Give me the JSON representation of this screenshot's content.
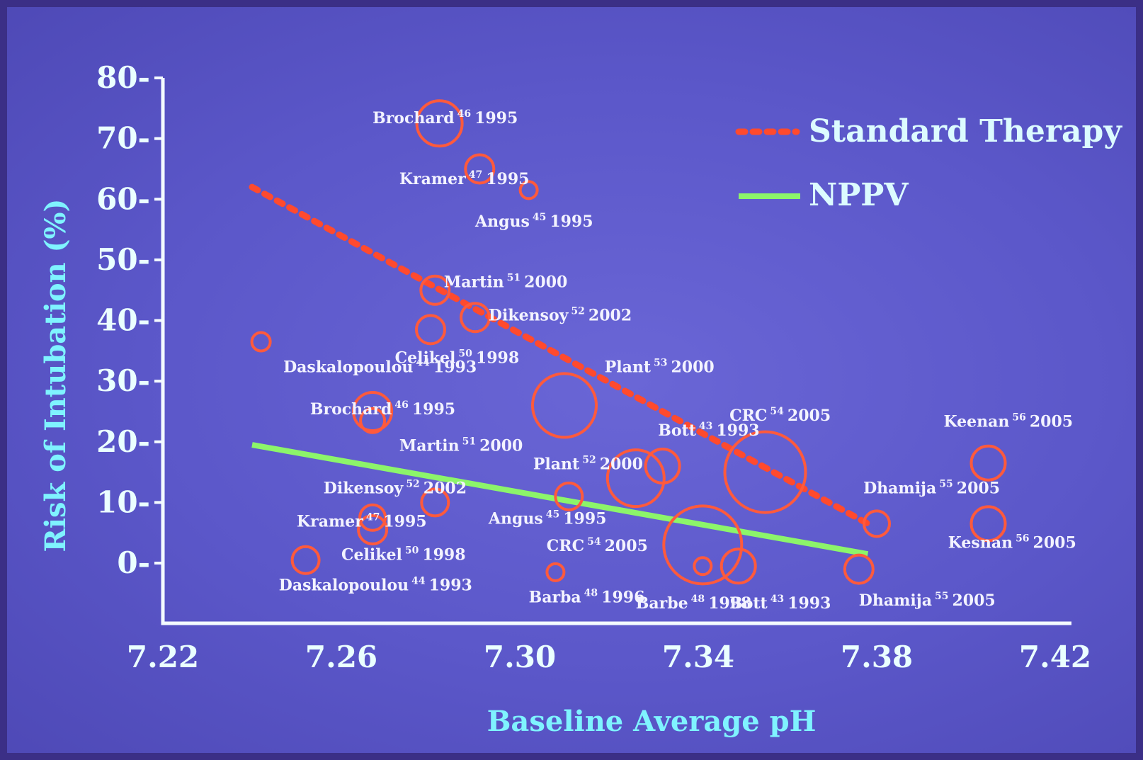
{
  "chart_data": {
    "type": "scatter",
    "xlabel": "Baseline Average pH",
    "ylabel": "Risk of Intubation (%)",
    "xlim": [
      7.22,
      7.42
    ],
    "ylim": [
      0,
      80
    ],
    "x_ticks": [
      "7.22",
      "7.26",
      "7.30",
      "7.34",
      "7.38",
      "7.42"
    ],
    "y_ticks": [
      "0",
      "10",
      "20",
      "30",
      "40",
      "50",
      "60",
      "70",
      "80"
    ],
    "legend": [
      {
        "label": "Standard Therapy",
        "color": "#ff4a2e",
        "style": "dotted"
      },
      {
        "label": "NPPV",
        "color": "#8cf56a",
        "style": "solid"
      }
    ],
    "legend_position": "top-right",
    "series": [
      {
        "name": "Standard Therapy",
        "color": "#ff4a2e",
        "trend": [
          [
            7.24,
            62
          ],
          [
            7.378,
            6.5
          ]
        ],
        "points": [
          {
            "x": 7.282,
            "y": 72.5,
            "size": 32,
            "label": "Brochard 46 1995"
          },
          {
            "x": 7.291,
            "y": 65,
            "size": 20,
            "label": "Kramer 47 1995"
          },
          {
            "x": 7.302,
            "y": 61.5,
            "size": 12,
            "label": "Angus 45 1995"
          },
          {
            "x": 7.281,
            "y": 45,
            "size": 20,
            "label": "Martin 51 2000"
          },
          {
            "x": 7.29,
            "y": 40.5,
            "size": 20,
            "label": "Dikensoy 52 2002"
          },
          {
            "x": 7.28,
            "y": 38.5,
            "size": 20,
            "label": "Celikel 50 1998"
          },
          {
            "x": 7.242,
            "y": 36.5,
            "size": 13,
            "label": "Daskalopoulou 44 1993"
          },
          {
            "x": 7.31,
            "y": 26,
            "size": 45,
            "label": "Plant 53 2000"
          },
          {
            "x": 7.332,
            "y": 16,
            "size": 24,
            "label": "Bott 43 1993"
          },
          {
            "x": 7.355,
            "y": 15,
            "size": 57,
            "label": "CRC 54 2005"
          },
          {
            "x": 7.38,
            "y": 6.5,
            "size": 18,
            "label": "Dhamija 55 2005"
          },
          {
            "x": 7.405,
            "y": 16.5,
            "size": 24,
            "label": "Keenan 56 2005"
          }
        ]
      },
      {
        "name": "NPPV",
        "color": "#8cf56a",
        "trend": [
          [
            7.24,
            19.5
          ],
          [
            7.378,
            1.5
          ]
        ],
        "points": [
          {
            "x": 7.267,
            "y": 25,
            "size": 27,
            "label": "Brochard 46 1995"
          },
          {
            "x": 7.267,
            "y": 23.5,
            "size": 17,
            "label": "Brochard 46 1995"
          },
          {
            "x": 7.281,
            "y": 10,
            "size": 19,
            "label": "Martin 51 2000"
          },
          {
            "x": 7.311,
            "y": 11,
            "size": 19,
            "label": "Plant 52 2000"
          },
          {
            "x": 7.267,
            "y": 7.5,
            "size": 18,
            "label": "Dikensoy 52 2002"
          },
          {
            "x": 7.267,
            "y": 5.5,
            "size": 20,
            "label": "Kramer 47 1995"
          },
          {
            "x": 7.326,
            "y": 14,
            "size": 40,
            "label": "Angus 45 1995"
          },
          {
            "x": 7.341,
            "y": 3,
            "size": 55,
            "label": "CRC 54 2005"
          },
          {
            "x": 7.252,
            "y": 0.5,
            "size": 19,
            "label": "Celikel 50 1998"
          },
          {
            "x": 7.308,
            "y": -1.5,
            "size": 12,
            "label": "Barba 48 1996"
          },
          {
            "x": 7.341,
            "y": -0.5,
            "size": 12,
            "label": "Barbe 48 1998"
          },
          {
            "x": 7.349,
            "y": -0.5,
            "size": 24,
            "label": "Bott 43 1993"
          },
          {
            "x": 7.376,
            "y": -1,
            "size": 20,
            "label": "Dhamija 55 2005"
          },
          {
            "x": 7.405,
            "y": 6.5,
            "size": 24,
            "label": "Keenan 56 2005"
          }
        ]
      }
    ],
    "annotations": [
      {
        "text": "Brochard 46 1995",
        "x": 7.267,
        "y": 72.5
      },
      {
        "text": "Kramer 47 1995",
        "x": 7.273,
        "y": 62.5
      },
      {
        "text": "Angus 45 1995",
        "x": 7.29,
        "y": 55.5
      },
      {
        "text": "Martin 51 2000",
        "x": 7.283,
        "y": 45.5
      },
      {
        "text": "Dikensoy 52 2002",
        "x": 7.293,
        "y": 40
      },
      {
        "text": "Celikel 50 1998",
        "x": 7.272,
        "y": 33
      },
      {
        "text": "Daskalopoulou 44 1993",
        "x": 7.247,
        "y": 31.5
      },
      {
        "text": "Plant 53 2000",
        "x": 7.319,
        "y": 31.5
      },
      {
        "text": "Brochard 46 1995",
        "x": 7.253,
        "y": 24.5
      },
      {
        "text": "Bott 43 1993",
        "x": 7.331,
        "y": 21
      },
      {
        "text": "CRC 54 2005",
        "x": 7.347,
        "y": 23.5
      },
      {
        "text": "Keenan 56 2005",
        "x": 7.395,
        "y": 22.5
      },
      {
        "text": "Martin 51 2000",
        "x": 7.273,
        "y": 18.5
      },
      {
        "text": "Plant 52 2000",
        "x": 7.303,
        "y": 15.5
      },
      {
        "text": "Dikensoy 52 2002",
        "x": 7.256,
        "y": 11.5
      },
      {
        "text": "Dhamija 55 2005",
        "x": 7.377,
        "y": 11.5
      },
      {
        "text": "Kramer 47 1995",
        "x": 7.25,
        "y": 6
      },
      {
        "text": "Angus 45 1995",
        "x": 7.293,
        "y": 6.5
      },
      {
        "text": "Kesnan 56 2005",
        "x": 7.396,
        "y": 2.5
      },
      {
        "text": "CRC 54 2005",
        "x": 7.306,
        "y": 2
      },
      {
        "text": "Celikel 50 1998",
        "x": 7.26,
        "y": 0.5
      },
      {
        "text": "Daskalopoulou 44 1993",
        "x": 7.246,
        "y": -4.5
      },
      {
        "text": "Barba 48 1996",
        "x": 7.302,
        "y": -6.5
      },
      {
        "text": "Barbe 48 1998",
        "x": 7.326,
        "y": -7.5
      },
      {
        "text": "Bott 43 1993",
        "x": 7.347,
        "y": -7.5
      },
      {
        "text": "Dhamija 55 2005",
        "x": 7.376,
        "y": -7
      }
    ]
  }
}
